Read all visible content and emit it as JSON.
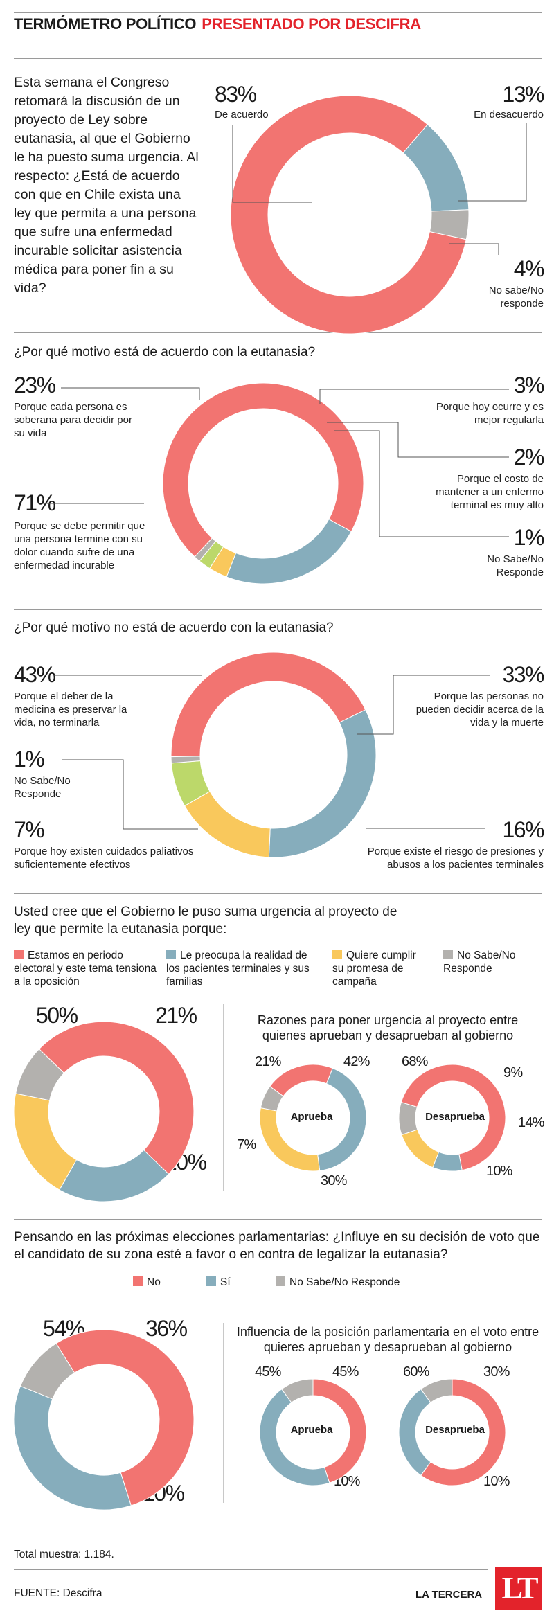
{
  "header": {
    "title": "TERMÓMETRO POLÍTICO",
    "subtitle": "PRESENTADO POR DESCIFRA"
  },
  "colors": {
    "red": "#f27471",
    "blue": "#86adbc",
    "yellow": "#f9c85c",
    "gray": "#b3b1ae",
    "green": "#bcd86a",
    "brand": "#e3232b"
  },
  "intro_text": "Esta semana el Congreso retomará la discusión de un proyecto de Ley sobre eutanasia, al que el Gobierno le ha puesto suma urgencia. Al respecto: ¿Está de acuerdo con que en Chile exista una ley que permita a una persona que sufre una enfermedad incurable solicitar asistencia médica para poner fin a su vida?",
  "chart_data": [
    {
      "type": "pie",
      "categories": [
        "De acuerdo",
        "En desacuerdo",
        "No sabe/No responde"
      ],
      "values": [
        83,
        13,
        4
      ],
      "labels": [
        "83%",
        "13%",
        "4%"
      ]
    },
    {
      "type": "pie",
      "title": "¿Por qué motivo está de acuerdo con la eutanasia?",
      "categories": [
        "Porque se debe permitir que una persona termine con su dolor cuando sufre de una enfermedad incurable",
        "Porque cada persona es soberana para decidir por su vida",
        "Porque hoy ocurre y es mejor regularla",
        "Porque el costo de mantener a un enfermo terminal es muy alto",
        "No Sabe/No Responde"
      ],
      "values": [
        71,
        23,
        3,
        2,
        1
      ],
      "labels": [
        "71%",
        "23%",
        "3%",
        "2%",
        "1%"
      ]
    },
    {
      "type": "pie",
      "title": "¿Por qué motivo no está de acuerdo con la eutanasia?",
      "categories": [
        "Porque el deber de la medicina es preservar la vida, no terminarla",
        "Porque las personas no pueden decidir acerca de la vida y la muerte",
        "Porque existe el riesgo de presiones y abusos a los pacientes terminales",
        "Porque hoy existen cuidados paliativos suficientemente efectivos",
        "No Sabe/No Responde"
      ],
      "values": [
        43,
        33,
        16,
        7,
        1
      ],
      "labels": [
        "43%",
        "33%",
        "16%",
        "7%",
        "1%"
      ]
    },
    {
      "type": "pie",
      "title": "Usted cree que el Gobierno le puso suma urgencia al proyecto de ley que permite la eutanasia porque:",
      "categories": [
        "Estamos en periodo electoral y este tema tensiona a la oposición",
        "Le preocupa la realidad de los pacientes terminales y sus familias",
        "Quiere cumplir su promesa de campaña",
        "No Sabe/No Responde"
      ],
      "values": [
        50,
        21,
        20,
        9
      ],
      "labels": [
        "50%",
        "21%",
        "20%",
        "9%"
      ]
    },
    {
      "type": "pie",
      "title": "Razones para poner urgencia al proyecto entre quienes aprueban y desaprueban al gobierno",
      "center_label": "Aprueba",
      "values": [
        21,
        42,
        30,
        7
      ],
      "labels": [
        "21%",
        "42%",
        "30%",
        "7%"
      ]
    },
    {
      "type": "pie",
      "center_label": "Desaprueba",
      "values": [
        68,
        9,
        14,
        10
      ],
      "labels": [
        "68%",
        "9%",
        "14%",
        "10%"
      ]
    },
    {
      "type": "pie",
      "title": "Pensando en las próximas elecciones parlamentarias: ¿Influye en su decisión de voto que el candidato de su zona esté a favor o en contra de legalizar la eutanasia?",
      "categories": [
        "No",
        "Sí",
        "No Sabe/No Responde"
      ],
      "values": [
        54,
        36,
        10
      ],
      "labels": [
        "54%",
        "36%",
        "10%"
      ]
    },
    {
      "type": "pie",
      "title": "Influencia de la posición parlamentaria en el voto entre quieres aprueban y desaprueban al gobierno",
      "center_label": "Aprueba",
      "values": [
        45,
        45,
        10
      ],
      "labels": [
        "45%",
        "45%",
        "10%"
      ]
    },
    {
      "type": "pie",
      "center_label": "Desaprueba",
      "values": [
        60,
        30,
        10
      ],
      "labels": [
        "60%",
        "30%",
        "10%"
      ]
    }
  ],
  "q2": {
    "title": "¿Por qué motivo está de acuerdo con la eutanasia?",
    "l23": "Porque cada persona es soberana para decidir por su vida",
    "l71": "Porque se debe permitir que una persona termine con su dolor cuando sufre de una enfermedad incurable",
    "l3": "Porque hoy ocurre y es mejor regularla",
    "l2": "Porque el costo de mantener a un enfermo terminal es muy alto",
    "l1": "No Sabe/No Responde"
  },
  "q3": {
    "title": "¿Por qué motivo no está de acuerdo con la eutanasia?",
    "l43": "Porque el deber de la medicina es preservar la vida, no terminarla",
    "l1": "No Sabe/No Responde",
    "l7": "Porque hoy existen cuidados paliativos suficientemente efectivos",
    "l33": "Porque las personas no pueden decidir acerca de la vida y la muerte",
    "l16": "Porque existe el riesgo de presiones y abusos a los pacientes terminales"
  },
  "q4": {
    "title": "Usted cree que el Gobierno le puso suma urgencia al proyecto de ley que permite la eutanasia porque:",
    "legend": [
      "Estamos en periodo electoral y este tema tensiona a la oposición",
      "Le preocupa la realidad de los pacientes terminales y sus familias",
      "Quiere cumplir su promesa de campaña",
      "No Sabe/No Responde"
    ]
  },
  "q5": {
    "title": "Pensando en las próximas elecciones parlamentarias: ¿Influye en su decisión de voto que el candidato de su zona esté a favor o en contra de legalizar la eutanasia?",
    "legend": [
      "No",
      "Sí",
      "No Sabe/No Responde"
    ]
  },
  "footer": {
    "sample": "Total muestra: 1.184.",
    "source": "FUENTE: Descifra",
    "publisher": "LA TERCERA",
    "logo": "LT"
  }
}
